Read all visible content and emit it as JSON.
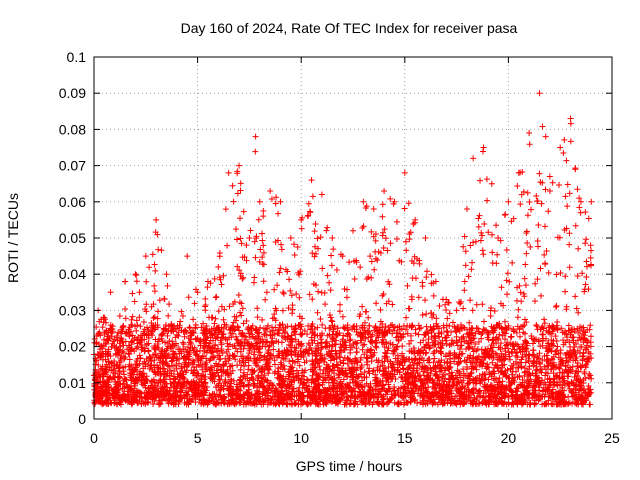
{
  "chart_data": {
    "type": "scatter",
    "title": "Day 160 of 2024, Rate Of TEC Index for receiver pasa",
    "xlabel": "GPS time / hours",
    "ylabel": "ROTI / TECUs",
    "xlim": [
      0,
      25
    ],
    "ylim": [
      0,
      0.1
    ],
    "x_ticks": [
      "0",
      "5",
      "10",
      "15",
      "20",
      "25"
    ],
    "y_ticks": [
      "0",
      "0.01",
      "0.02",
      "0.03",
      "0.04",
      "0.05",
      "0.06",
      "0.07",
      "0.08",
      "0.09",
      "0.1"
    ],
    "grid": true,
    "marker": "+",
    "color": "#ff0000",
    "x_range_of_points": [
      0,
      24
    ],
    "series": [
      {
        "values_note_removed": true,
        "points": [
          [
            0.0,
            0.012
          ],
          [
            0.2,
            0.03
          ],
          [
            0.5,
            0.028
          ],
          [
            0.8,
            0.035
          ],
          [
            1.0,
            0.022
          ],
          [
            1.5,
            0.038
          ],
          [
            2.0,
            0.04
          ],
          [
            2.5,
            0.045
          ],
          [
            3.0,
            0.055
          ],
          [
            3.5,
            0.04
          ],
          [
            4.0,
            0.025
          ],
          [
            4.5,
            0.045
          ],
          [
            5.0,
            0.035
          ],
          [
            5.5,
            0.038
          ],
          [
            6.0,
            0.042
          ],
          [
            6.5,
            0.068
          ],
          [
            7.0,
            0.07
          ],
          [
            7.5,
            0.05
          ],
          [
            7.8,
            0.078
          ],
          [
            8.0,
            0.06
          ],
          [
            8.5,
            0.063
          ],
          [
            9.0,
            0.06
          ],
          [
            9.5,
            0.05
          ],
          [
            10.0,
            0.055
          ],
          [
            10.5,
            0.066
          ],
          [
            11.0,
            0.062
          ],
          [
            11.5,
            0.05
          ],
          [
            12.0,
            0.045
          ],
          [
            12.5,
            0.052
          ],
          [
            13.0,
            0.06
          ],
          [
            13.5,
            0.058
          ],
          [
            14.0,
            0.063
          ],
          [
            14.5,
            0.06
          ],
          [
            15.0,
            0.068
          ],
          [
            15.5,
            0.055
          ],
          [
            16.0,
            0.05
          ],
          [
            16.5,
            0.038
          ],
          [
            17.0,
            0.033
          ],
          [
            17.5,
            0.03
          ],
          [
            18.0,
            0.058
          ],
          [
            18.3,
            0.072
          ],
          [
            18.8,
            0.075
          ],
          [
            19.2,
            0.065
          ],
          [
            19.5,
            0.05
          ],
          [
            20.0,
            0.06
          ],
          [
            20.5,
            0.068
          ],
          [
            21.0,
            0.079
          ],
          [
            21.5,
            0.09
          ],
          [
            21.8,
            0.078
          ],
          [
            22.0,
            0.067
          ],
          [
            22.5,
            0.075
          ],
          [
            23.0,
            0.083
          ],
          [
            23.5,
            0.06
          ],
          [
            24.0,
            0.06
          ]
        ]
      }
    ]
  }
}
